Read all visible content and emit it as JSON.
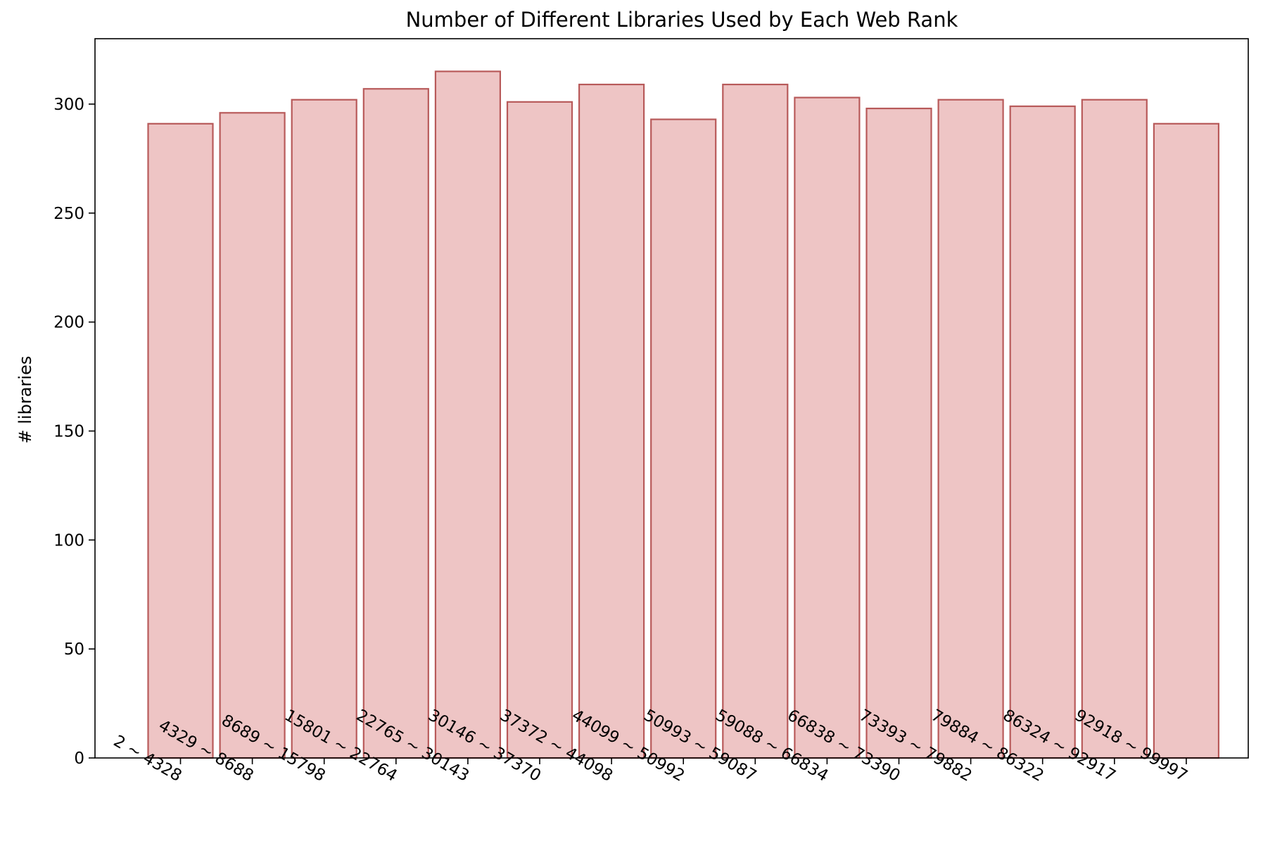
{
  "chart_data": {
    "type": "bar",
    "title": "Number of Different Libraries Used by Each Web Rank",
    "xlabel": "",
    "ylabel": "# libraries",
    "categories": [
      "2 ~ 4328",
      "4329 ~ 8688",
      "8689 ~ 15798",
      "15801 ~ 22764",
      "22765 ~ 30143",
      "30146 ~ 37370",
      "37372 ~ 44098",
      "44099 ~ 50992",
      "50993 ~ 59087",
      "59088 ~ 66834",
      "66838 ~ 73390",
      "73393 ~ 79882",
      "79884 ~ 86322",
      "86324 ~ 92917",
      "92918 ~ 99997"
    ],
    "values": [
      291,
      296,
      302,
      307,
      315,
      301,
      309,
      293,
      309,
      303,
      298,
      302,
      299,
      302,
      291
    ],
    "ylim": [
      0,
      330
    ],
    "yticks": [
      0,
      50,
      100,
      150,
      200,
      250,
      300
    ],
    "grid": false,
    "bar_fill": "#eec5c5",
    "bar_edge": "#b85a5a"
  }
}
